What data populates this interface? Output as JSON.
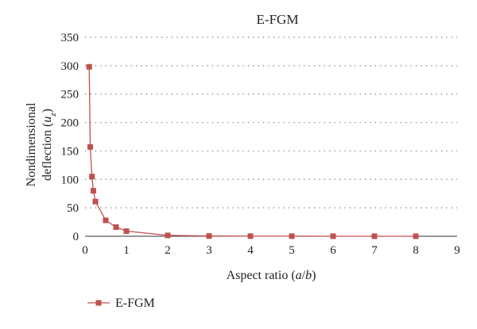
{
  "chart_data": {
    "type": "line",
    "title": "E-FGM",
    "xlabel_parts": [
      {
        "text": "Aspect ratio (",
        "italic": false
      },
      {
        "text": "a",
        "italic": true
      },
      {
        "text": "/",
        "italic": false
      },
      {
        "text": "b",
        "italic": true
      },
      {
        "text": ")",
        "italic": false
      }
    ],
    "ylabel_line1": "Nondimensional",
    "ylabel_line2_parts": [
      {
        "text": "deflection (",
        "italic": false,
        "sub": false
      },
      {
        "text": "u",
        "italic": true,
        "sub": false
      },
      {
        "text": "z",
        "italic": true,
        "sub": true
      },
      {
        "text": ")",
        "italic": false,
        "sub": false
      }
    ],
    "xlim": [
      0,
      9
    ],
    "ylim": [
      0,
      350
    ],
    "xticks": [
      0,
      1,
      2,
      3,
      4,
      5,
      6,
      7,
      8,
      9
    ],
    "yticks": [
      0,
      50,
      100,
      150,
      200,
      250,
      300,
      350
    ],
    "grid": "horizontal-dotted",
    "legend_position": "bottom-left",
    "series": [
      {
        "name": "E-FGM",
        "color": "#c0504d",
        "marker": "square",
        "x": [
          0.1,
          0.125,
          0.1667,
          0.2,
          0.25,
          0.5,
          0.75,
          1,
          2,
          3,
          4,
          5,
          6,
          7,
          8
        ],
        "y": [
          298,
          157,
          105,
          80,
          61,
          28,
          16,
          9,
          1.5,
          0.4,
          0.2,
          0.1,
          0.05,
          0.03,
          0.02
        ]
      }
    ]
  }
}
